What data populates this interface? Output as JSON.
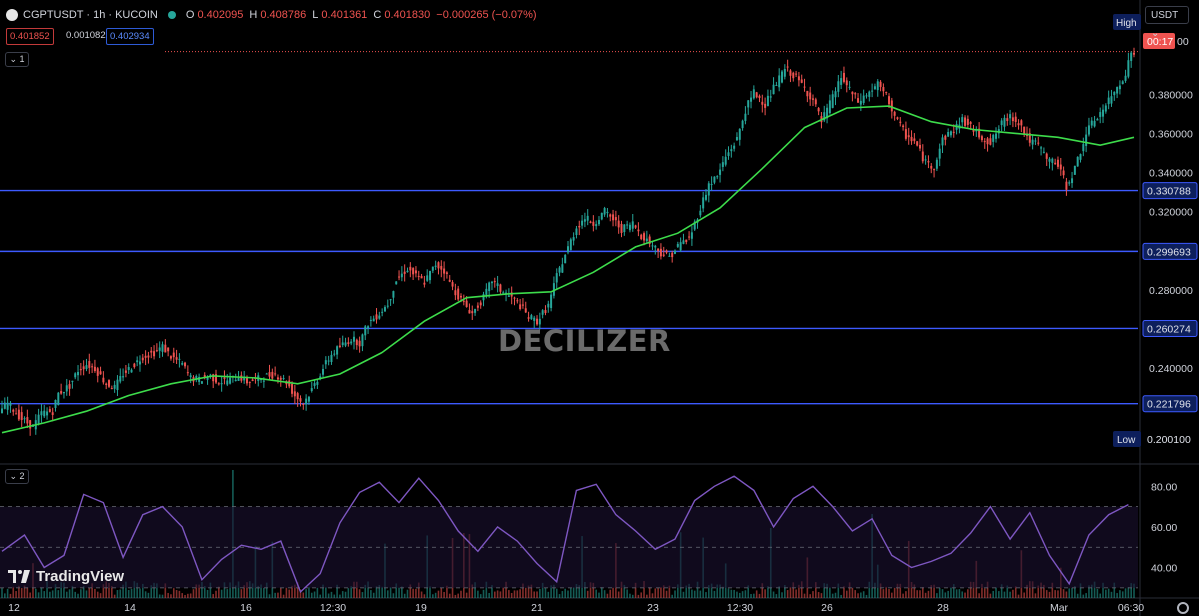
{
  "header": {
    "symbol": "CGPTUSDT · 1h · KUCOIN",
    "open_label": "O",
    "open": "0.402095",
    "high_label": "H",
    "high": "0.408786",
    "low_label": "L",
    "low": "0.401361",
    "close_label": "C",
    "close": "0.401830",
    "change": "−0.000265 (−0.07%)"
  },
  "quote": {
    "bid": "0.401852",
    "spread": "0.001082",
    "ask": "0.402934"
  },
  "legend": {
    "main_badge": "1",
    "sub_badge": "2"
  },
  "currency_selector": "USDT",
  "watermark": "DECILIZER",
  "branding": "TradingView",
  "colors": {
    "background": "#000000",
    "up": "#26a69a",
    "down": "#ef5350",
    "ma": "#3ddc4b",
    "level_lines": "#3d5afe",
    "rsi": "#7e57c2",
    "grid": "#1a1a1a"
  },
  "chart_data": [
    {
      "type": "candlestick",
      "series_name": "CGPTUSDT",
      "y_axis_ticks": [
        0.2,
        0.22,
        0.24,
        0.26,
        0.28,
        0.3,
        0.32,
        0.34,
        0.36,
        0.38
      ],
      "y_axis_labels": [
        "0.200100",
        "0.240000",
        "0.280000",
        "0.320000",
        "0.340000",
        "0.360000",
        "0.380000"
      ],
      "ylim": [
        0.192,
        0.418
      ],
      "x_tick_labels": [
        "12",
        "14",
        "16",
        "12:30",
        "19",
        "21",
        "23",
        "12:30",
        "26",
        "28",
        "Mar",
        "06:30"
      ],
      "horizontal_levels": [
        0.330788,
        0.299693,
        0.260274,
        0.221796
      ],
      "horizontal_level_labels": [
        "0.330788",
        "0.299693",
        "0.260274",
        "0.221796"
      ],
      "high_label": "High",
      "low_label": "Low",
      "low_value": "0.200100",
      "countdown": "00:17",
      "current_price": 0.40183,
      "price_path": [
        [
          0,
          0.218
        ],
        [
          3,
          0.222
        ],
        [
          8,
          0.214
        ],
        [
          12,
          0.21
        ],
        [
          15,
          0.217
        ],
        [
          19,
          0.218
        ],
        [
          21,
          0.227
        ],
        [
          25,
          0.231
        ],
        [
          28,
          0.239
        ],
        [
          31,
          0.242
        ],
        [
          34,
          0.24
        ],
        [
          38,
          0.232
        ],
        [
          41,
          0.23
        ],
        [
          44,
          0.237
        ],
        [
          48,
          0.242
        ],
        [
          51,
          0.246
        ],
        [
          55,
          0.248
        ],
        [
          58,
          0.251
        ],
        [
          61,
          0.246
        ],
        [
          65,
          0.242
        ],
        [
          68,
          0.235
        ],
        [
          71,
          0.234
        ],
        [
          75,
          0.236
        ],
        [
          78,
          0.233
        ],
        [
          82,
          0.234
        ],
        [
          85,
          0.236
        ],
        [
          88,
          0.233
        ],
        [
          91,
          0.234
        ],
        [
          95,
          0.236
        ],
        [
          98,
          0.237
        ],
        [
          102,
          0.233
        ],
        [
          105,
          0.226
        ],
        [
          108,
          0.222
        ],
        [
          111,
          0.229
        ],
        [
          115,
          0.24
        ],
        [
          118,
          0.247
        ],
        [
          121,
          0.251
        ],
        [
          125,
          0.255
        ],
        [
          128,
          0.253
        ],
        [
          131,
          0.263
        ],
        [
          135,
          0.268
        ],
        [
          138,
          0.273
        ],
        [
          141,
          0.285
        ],
        [
          145,
          0.291
        ],
        [
          148,
          0.287
        ],
        [
          151,
          0.284
        ],
        [
          155,
          0.293
        ],
        [
          158,
          0.29
        ],
        [
          161,
          0.281
        ],
        [
          165,
          0.273
        ],
        [
          168,
          0.268
        ],
        [
          172,
          0.276
        ],
        [
          175,
          0.285
        ],
        [
          178,
          0.28
        ],
        [
          182,
          0.276
        ],
        [
          185,
          0.272
        ],
        [
          188,
          0.266
        ],
        [
          191,
          0.264
        ],
        [
          195,
          0.272
        ],
        [
          198,
          0.287
        ],
        [
          201,
          0.298
        ],
        [
          205,
          0.312
        ],
        [
          208,
          0.317
        ],
        [
          211,
          0.314
        ],
        [
          215,
          0.32
        ],
        [
          218,
          0.316
        ],
        [
          221,
          0.311
        ],
        [
          225,
          0.314
        ],
        [
          228,
          0.308
        ],
        [
          232,
          0.303
        ],
        [
          235,
          0.299
        ],
        [
          238,
          0.297
        ],
        [
          242,
          0.304
        ],
        [
          245,
          0.306
        ],
        [
          248,
          0.318
        ],
        [
          252,
          0.334
        ],
        [
          255,
          0.338
        ],
        [
          258,
          0.348
        ],
        [
          262,
          0.357
        ],
        [
          265,
          0.372
        ],
        [
          268,
          0.381
        ],
        [
          272,
          0.375
        ],
        [
          275,
          0.383
        ],
        [
          279,
          0.393
        ],
        [
          282,
          0.39
        ],
        [
          285,
          0.385
        ],
        [
          289,
          0.377
        ],
        [
          292,
          0.366
        ],
        [
          295,
          0.375
        ],
        [
          299,
          0.389
        ],
        [
          302,
          0.382
        ],
        [
          305,
          0.376
        ],
        [
          309,
          0.381
        ],
        [
          312,
          0.385
        ],
        [
          315,
          0.379
        ],
        [
          319,
          0.366
        ],
        [
          322,
          0.359
        ],
        [
          325,
          0.356
        ],
        [
          329,
          0.345
        ],
        [
          332,
          0.343
        ],
        [
          335,
          0.357
        ],
        [
          339,
          0.362
        ],
        [
          342,
          0.367
        ],
        [
          345,
          0.363
        ],
        [
          349,
          0.358
        ],
        [
          352,
          0.355
        ],
        [
          356,
          0.365
        ],
        [
          359,
          0.369
        ],
        [
          362,
          0.366
        ],
        [
          366,
          0.356
        ],
        [
          369,
          0.354
        ],
        [
          372,
          0.347
        ],
        [
          376,
          0.344
        ],
        [
          379,
          0.333
        ],
        [
          382,
          0.342
        ],
        [
          386,
          0.36
        ],
        [
          389,
          0.367
        ],
        [
          392,
          0.372
        ],
        [
          396,
          0.381
        ],
        [
          400,
          0.391
        ],
        [
          402,
          0.401
        ]
      ],
      "moving_average": [
        [
          0,
          0.207
        ],
        [
          15,
          0.212
        ],
        [
          30,
          0.218
        ],
        [
          45,
          0.226
        ],
        [
          60,
          0.232
        ],
        [
          75,
          0.236
        ],
        [
          90,
          0.235
        ],
        [
          105,
          0.232
        ],
        [
          120,
          0.237
        ],
        [
          135,
          0.248
        ],
        [
          150,
          0.264
        ],
        [
          165,
          0.276
        ],
        [
          180,
          0.278
        ],
        [
          195,
          0.279
        ],
        [
          210,
          0.289
        ],
        [
          225,
          0.302
        ],
        [
          240,
          0.309
        ],
        [
          255,
          0.322
        ],
        [
          270,
          0.342
        ],
        [
          285,
          0.363
        ],
        [
          300,
          0.373
        ],
        [
          315,
          0.374
        ],
        [
          330,
          0.366
        ],
        [
          345,
          0.362
        ],
        [
          360,
          0.36
        ],
        [
          375,
          0.358
        ],
        [
          390,
          0.354
        ],
        [
          402,
          0.358
        ]
      ]
    },
    {
      "type": "line",
      "series_name": "RSI",
      "y_axis_labels": [
        "80.00",
        "60.00",
        "40.00"
      ],
      "ylim": [
        25,
        90
      ],
      "levels": [
        70,
        50,
        30
      ],
      "values": [
        [
          0,
          48
        ],
        [
          8,
          56
        ],
        [
          15,
          40
        ],
        [
          22,
          46
        ],
        [
          29,
          76
        ],
        [
          36,
          72
        ],
        [
          43,
          45
        ],
        [
          50,
          66
        ],
        [
          57,
          70
        ],
        [
          64,
          60
        ],
        [
          71,
          34
        ],
        [
          78,
          44
        ],
        [
          85,
          51
        ],
        [
          92,
          49
        ],
        [
          99,
          53
        ],
        [
          106,
          28
        ],
        [
          113,
          37
        ],
        [
          120,
          62
        ],
        [
          127,
          77
        ],
        [
          134,
          82
        ],
        [
          141,
          72
        ],
        [
          148,
          84
        ],
        [
          155,
          73
        ],
        [
          162,
          58
        ],
        [
          169,
          48
        ],
        [
          176,
          60
        ],
        [
          183,
          53
        ],
        [
          190,
          42
        ],
        [
          197,
          33
        ],
        [
          204,
          78
        ],
        [
          211,
          81
        ],
        [
          218,
          66
        ],
        [
          225,
          58
        ],
        [
          232,
          49
        ],
        [
          239,
          54
        ],
        [
          246,
          73
        ],
        [
          253,
          80
        ],
        [
          260,
          85
        ],
        [
          267,
          78
        ],
        [
          274,
          60
        ],
        [
          281,
          74
        ],
        [
          288,
          80
        ],
        [
          295,
          70
        ],
        [
          302,
          58
        ],
        [
          309,
          64
        ],
        [
          316,
          46
        ],
        [
          323,
          40
        ],
        [
          330,
          43
        ],
        [
          337,
          47
        ],
        [
          344,
          57
        ],
        [
          351,
          70
        ],
        [
          358,
          54
        ],
        [
          365,
          67
        ],
        [
          372,
          46
        ],
        [
          379,
          32
        ],
        [
          386,
          56
        ],
        [
          393,
          66
        ],
        [
          400,
          71
        ]
      ],
      "volume_profile": "bars along bottom, colored up/down"
    }
  ]
}
